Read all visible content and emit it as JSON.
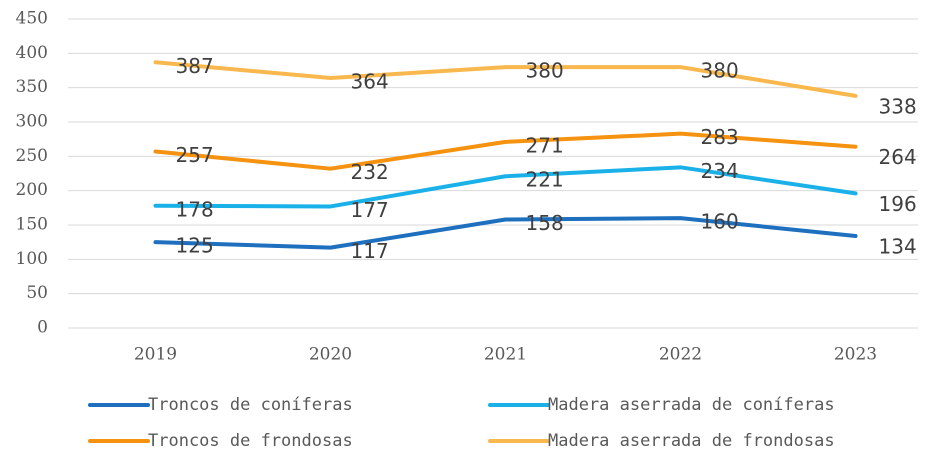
{
  "chart_data": {
    "type": "line",
    "categories": [
      "2019",
      "2020",
      "2021",
      "2022",
      "2023"
    ],
    "series": [
      {
        "name": "Troncos de coníferas",
        "color": "#1f6fbf",
        "values": [
          125,
          117,
          158,
          160,
          134
        ]
      },
      {
        "name": "Madera aserrada de coníferas",
        "color": "#1ab1e8",
        "values": [
          178,
          177,
          221,
          234,
          196
        ]
      },
      {
        "name": "Troncos de frondosas",
        "color": "#f5920f",
        "values": [
          257,
          232,
          271,
          283,
          264
        ]
      },
      {
        "name": "Madera aserrada de frondosas",
        "color": "#f8b84e",
        "values": [
          387,
          364,
          380,
          380,
          338
        ]
      }
    ],
    "ylim": [
      0,
      450
    ],
    "yticks": [
      0,
      50,
      100,
      150,
      200,
      250,
      300,
      350,
      400,
      450
    ],
    "grid": true
  }
}
